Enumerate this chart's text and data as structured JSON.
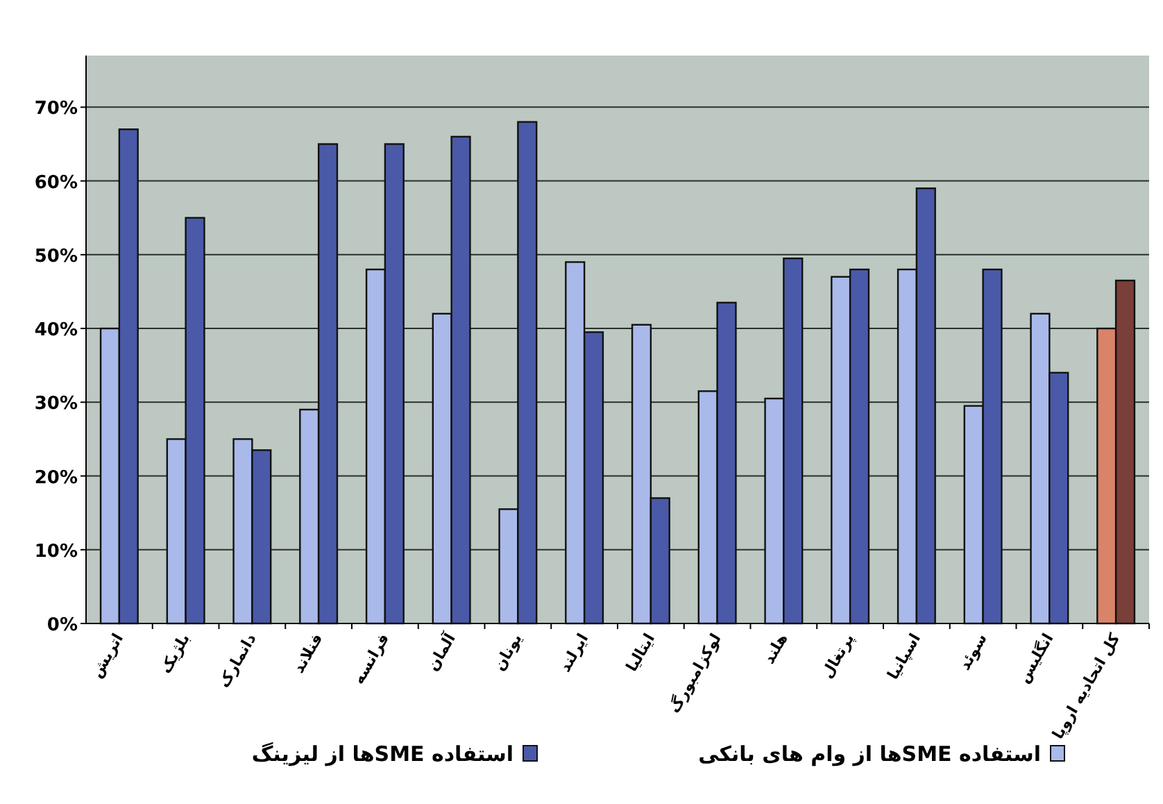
{
  "chart_data": {
    "type": "bar",
    "categories": [
      "اتریش",
      "بلژیک",
      "دانمارک",
      "فنلاند",
      "فرانسه",
      "آلمان",
      "یونان",
      "ایرلند",
      "ایتالیا",
      "لوکزامبورگ",
      "هلند",
      "پرتغال",
      "اسپانیا",
      "سوئد",
      "انگلیس",
      "کل اتحادیه اروپا"
    ],
    "series": [
      {
        "name": "استفاده SMEها از وام های بانکی",
        "color": "#a9b9ea",
        "colors": [
          "#a9b9ea",
          "#a9b9ea",
          "#a9b9ea",
          "#a9b9ea",
          "#a9b9ea",
          "#a9b9ea",
          "#a9b9ea",
          "#a9b9ea",
          "#a9b9ea",
          "#a9b9ea",
          "#a9b9ea",
          "#a9b9ea",
          "#a9b9ea",
          "#a9b9ea",
          "#a9b9ea",
          "#d98468"
        ],
        "values": [
          40,
          25,
          25,
          29,
          48,
          42,
          15.5,
          49,
          40.5,
          31.5,
          30.5,
          47,
          48,
          29.5,
          42,
          40
        ]
      },
      {
        "name": "استفاده SMEها از لیزینگ",
        "color": "#4a5aa8",
        "colors": [
          "#4a5aa8",
          "#4a5aa8",
          "#4a5aa8",
          "#4a5aa8",
          "#4a5aa8",
          "#4a5aa8",
          "#4a5aa8",
          "#4a5aa8",
          "#4a5aa8",
          "#4a5aa8",
          "#4a5aa8",
          "#4a5aa8",
          "#4a5aa8",
          "#4a5aa8",
          "#4a5aa8",
          "#7a3f38"
        ],
        "values": [
          67,
          55,
          23.5,
          65,
          65,
          66,
          68,
          39.5,
          17,
          43.5,
          49.5,
          48,
          59,
          48,
          34,
          46.5
        ]
      }
    ],
    "ylim": [
      0,
      77
    ],
    "yticks": [
      {
        "value": 0,
        "label": "0%"
      },
      {
        "value": 10,
        "label": "10%"
      },
      {
        "value": 20,
        "label": "20%"
      },
      {
        "value": 30,
        "label": "30%"
      },
      {
        "value": 40,
        "label": "40%"
      },
      {
        "value": 50,
        "label": "50%"
      },
      {
        "value": 60,
        "label": "60%"
      },
      {
        "value": 70,
        "label": "70%"
      }
    ],
    "grid": "y",
    "legend": "bottom"
  }
}
